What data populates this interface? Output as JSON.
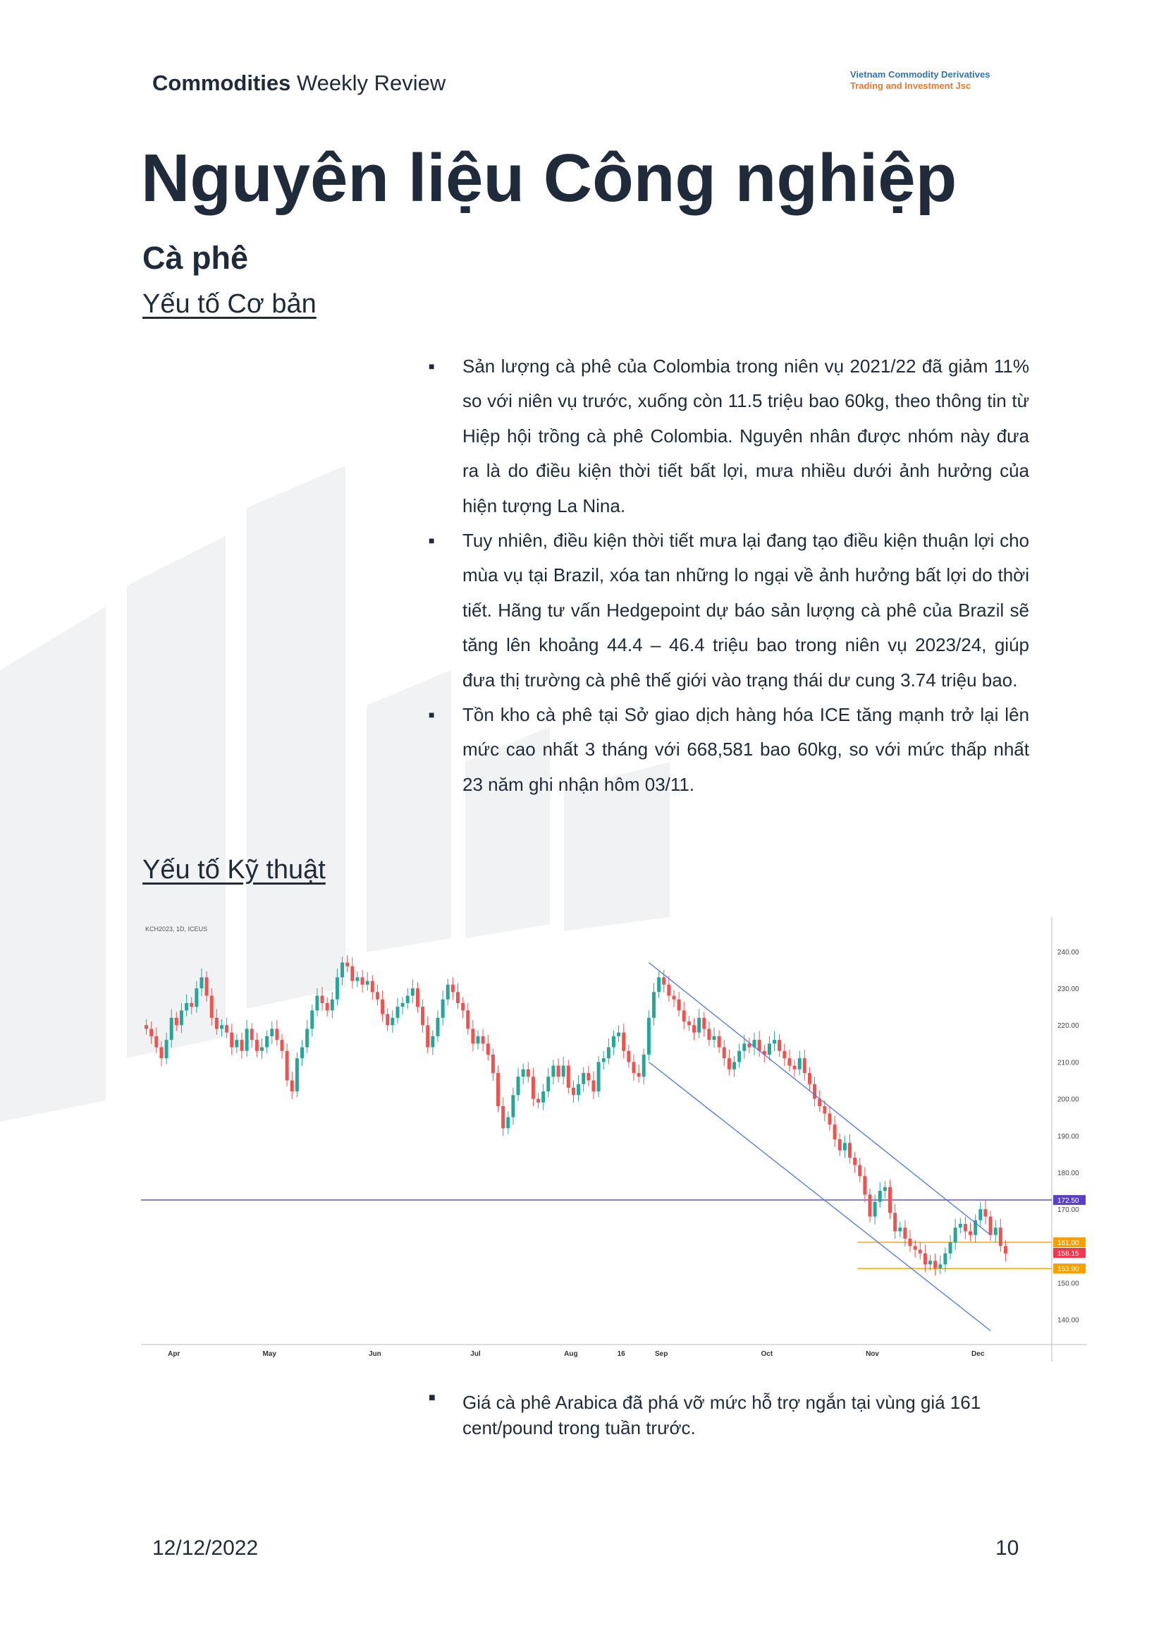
{
  "header": {
    "left_bold": "Commodities",
    "left_rest": " Weekly Review",
    "company_line1": "Vietnam Commodity Derivatives",
    "company_line2": "Trading and Investment Jsc"
  },
  "page_title": "Nguyên liệu Công nghiệp",
  "subtitle": "Cà phê",
  "section_fundamental": "Yếu tố Cơ bản",
  "section_technical": "Yếu tố Kỹ thuật",
  "fundamental_bullets": [
    "Sản lượng cà phê của Colombia trong niên vụ 2021/22 đã giảm 11% so với niên vụ trước, xuống còn 11.5 triệu bao 60kg, theo thông tin từ Hiệp hội trồng cà phê Colombia. Nguyên nhân được nhóm này đưa ra là do điều kiện thời tiết bất lợi, mưa nhiều dưới ảnh hưởng của hiện tượng La Nina.",
    "Tuy nhiên, điều kiện thời tiết mưa lại đang tạo điều kiện thuận lợi cho mùa vụ tại Brazil, xóa tan những lo ngại về ảnh hưởng bất lợi do thời tiết. Hãng tư vấn Hedgepoint dự báo sản lượng cà phê của Brazil sẽ tăng lên khoảng 44.4 – 46.4 triệu bao trong niên vụ 2023/24, giúp đưa thị trường cà phê thế giới vào trạng thái dư cung 3.74 triệu bao.",
    "Tồn kho cà phê tại Sở giao dịch hàng hóa ICE tăng mạnh trở lại lên mức cao nhất 3 tháng với 668,581 bao 60kg, so với mức thấp nhất 23 năm ghi nhận hôm 03/11."
  ],
  "technical_bullets": [
    "Giá cà phê Arabica đã phá vỡ mức hỗ trợ ngắn tại vùng giá 161 cent/pound trong tuần trước."
  ],
  "bullet_glyph": "■",
  "footer": {
    "date": "12/12/2022",
    "page": "10"
  },
  "chart_data": {
    "type": "candlestick",
    "symbol_label": "KCH2023, 1D, ICEUS",
    "y_ticks": [
      "240.00",
      "230.00",
      "220.00",
      "210.00",
      "200.00",
      "190.00",
      "180.00",
      "170.00",
      "150.00",
      "140.00"
    ],
    "ylim": [
      134,
      244
    ],
    "x_ticks": [
      "Apr",
      "May",
      "Jun",
      "Jul",
      "Aug",
      "16",
      "Sep",
      "Oct",
      "Nov",
      "Dec"
    ],
    "price_labels": [
      {
        "text": "172.50",
        "value": 172.5,
        "color": "#5b3fc4"
      },
      {
        "text": "161.00",
        "value": 161.0,
        "color": "#f5a000"
      },
      {
        "text": "158.15",
        "value": 158.15,
        "color": "#f0384e"
      },
      {
        "text": "153.90",
        "value": 153.9,
        "color": "#f5a000"
      }
    ],
    "hlines": [
      {
        "value": 172.5,
        "color": "#5b3fc4"
      },
      {
        "value": 161.0,
        "color": "#f5a000"
      },
      {
        "value": 153.9,
        "color": "#f5a000"
      }
    ],
    "closes": [
      219,
      217,
      214,
      211,
      216,
      222,
      220,
      224,
      226,
      225,
      230,
      233,
      228,
      222,
      219,
      220,
      218,
      214,
      216,
      213,
      219,
      216,
      213,
      214,
      217,
      219,
      216,
      213,
      205,
      202,
      211,
      214,
      219,
      224,
      228,
      226,
      224,
      227,
      233,
      237,
      236,
      232,
      233,
      231,
      232,
      229,
      227,
      223,
      220,
      222,
      225,
      226,
      228,
      230,
      225,
      220,
      214,
      217,
      222,
      227,
      231,
      229,
      226,
      224,
      219,
      215,
      217,
      215,
      212,
      207,
      198,
      192,
      195,
      201,
      206,
      208,
      206,
      200,
      199,
      202,
      206,
      209,
      206,
      209,
      203,
      201,
      204,
      207,
      205,
      202,
      210,
      211,
      214,
      217,
      218,
      213,
      210,
      207,
      206,
      212,
      222,
      229,
      233,
      231,
      228,
      227,
      224,
      221,
      220,
      218,
      222,
      219,
      216,
      217,
      214,
      211,
      208,
      210,
      213,
      215,
      214,
      216,
      213,
      212,
      215,
      216,
      213,
      211,
      209,
      208,
      211,
      207,
      204,
      200,
      198,
      196,
      193,
      189,
      186,
      188,
      184,
      182,
      179,
      174,
      168,
      172,
      175,
      176,
      169,
      164,
      165,
      162,
      160,
      159,
      158,
      155,
      156,
      154,
      155,
      158,
      161,
      165,
      166,
      164,
      163,
      167,
      170,
      168,
      163,
      165,
      160,
      158
    ]
  }
}
